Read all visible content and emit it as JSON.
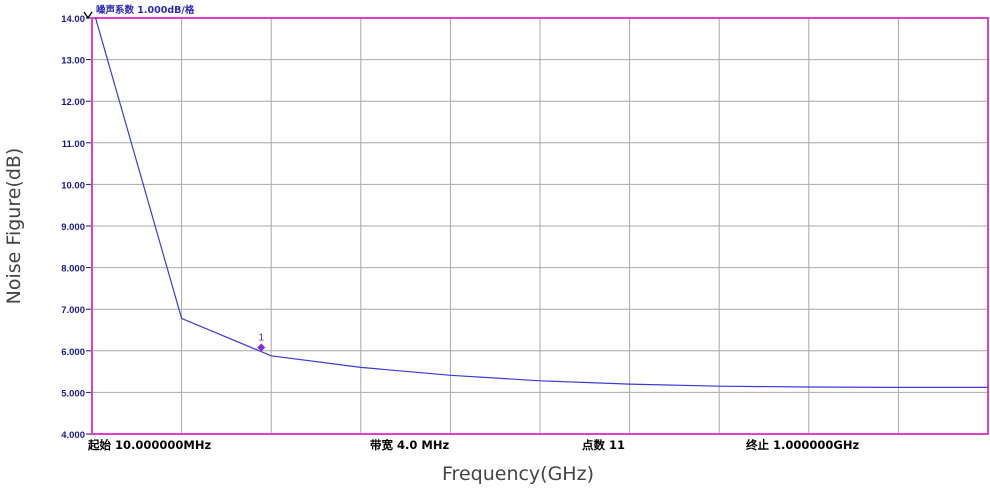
{
  "chart_data": {
    "type": "line",
    "ylabel": "Noise Figure(dB)",
    "xlabel": "Frequency(GHz)",
    "header": "噪声系数   1.000dB/格",
    "y_ticks": [
      "14.00",
      "13.00",
      "12.00",
      "11.00",
      "10.00",
      "9.000",
      "8.000",
      "7.000",
      "6.000",
      "5.000",
      "4.000"
    ],
    "ylim": [
      4,
      14
    ],
    "xlim": [
      0.01,
      1.0
    ],
    "grid": true,
    "x": [
      0.01,
      0.109,
      0.208,
      0.307,
      0.406,
      0.505,
      0.604,
      0.703,
      0.802,
      0.901,
      1.0
    ],
    "series": [
      {
        "values": [
          14.3,
          6.78,
          5.88,
          5.6,
          5.41,
          5.28,
          5.2,
          5.15,
          5.13,
          5.12,
          5.12
        ]
      }
    ],
    "marker": {
      "label": "1",
      "x": 0.197,
      "y": 6.08
    },
    "info": {
      "start": "起始   10.000000MHz",
      "bandwidth": "带宽  4.0  MHz",
      "points": "点数  11",
      "stop": "终止  1.000000GHz"
    },
    "colors": {
      "trace": "#3a3ad6",
      "frame": "#e040c8",
      "grid": "#a8a8a8",
      "marker": "#8a2be2"
    }
  }
}
